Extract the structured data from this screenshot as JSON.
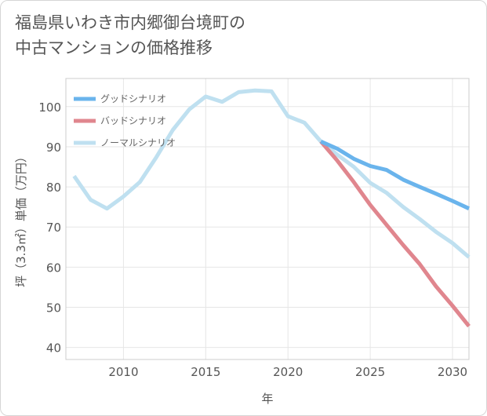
{
  "title_lines": [
    "福島県いわき市内郷御台境町の",
    "中古マンションの価格推移"
  ],
  "chart_data": {
    "type": "line",
    "xlabel": "年",
    "ylabel": "坪（3.3㎡）単価（万円）",
    "xlim": [
      2006.5,
      2031
    ],
    "ylim": [
      37,
      107
    ],
    "x_ticks": [
      2010,
      2015,
      2020,
      2025,
      2030
    ],
    "y_ticks": [
      40,
      50,
      60,
      70,
      80,
      90,
      100
    ],
    "legend_position": "top-left",
    "series": [
      {
        "name": "グッドシナリオ",
        "color": "#6ab4ec",
        "x": [
          2022,
          2023,
          2024,
          2025,
          2026,
          2027,
          2028,
          2029,
          2030,
          2031
        ],
        "y": [
          91.3,
          89.5,
          87.0,
          85.2,
          84.2,
          81.8,
          80.0,
          78.3,
          76.5,
          74.6
        ]
      },
      {
        "name": "バッドシナリオ",
        "color": "#e0868e",
        "x": [
          2022,
          2023,
          2024,
          2025,
          2026,
          2027,
          2028,
          2029,
          2030,
          2031
        ],
        "y": [
          91.3,
          86.5,
          81.2,
          75.5,
          70.5,
          65.5,
          60.8,
          55.2,
          50.4,
          45.3
        ]
      },
      {
        "name": "ノーマルシナリオ",
        "color": "#bfe0f0",
        "x": [
          2007,
          2008,
          2009,
          2010,
          2011,
          2012,
          2013,
          2014,
          2015,
          2016,
          2017,
          2018,
          2019,
          2020,
          2021,
          2022,
          2023,
          2024,
          2025,
          2026,
          2027,
          2028,
          2029,
          2030,
          2031
        ],
        "y": [
          82.7,
          76.8,
          74.6,
          77.6,
          81.2,
          87.4,
          94.2,
          99.3,
          102.5,
          101.2,
          103.6,
          104.0,
          103.8,
          97.6,
          96.0,
          91.3,
          88.0,
          85.0,
          81.0,
          78.5,
          75.0,
          72.0,
          68.8,
          66.0,
          62.5
        ]
      }
    ]
  }
}
